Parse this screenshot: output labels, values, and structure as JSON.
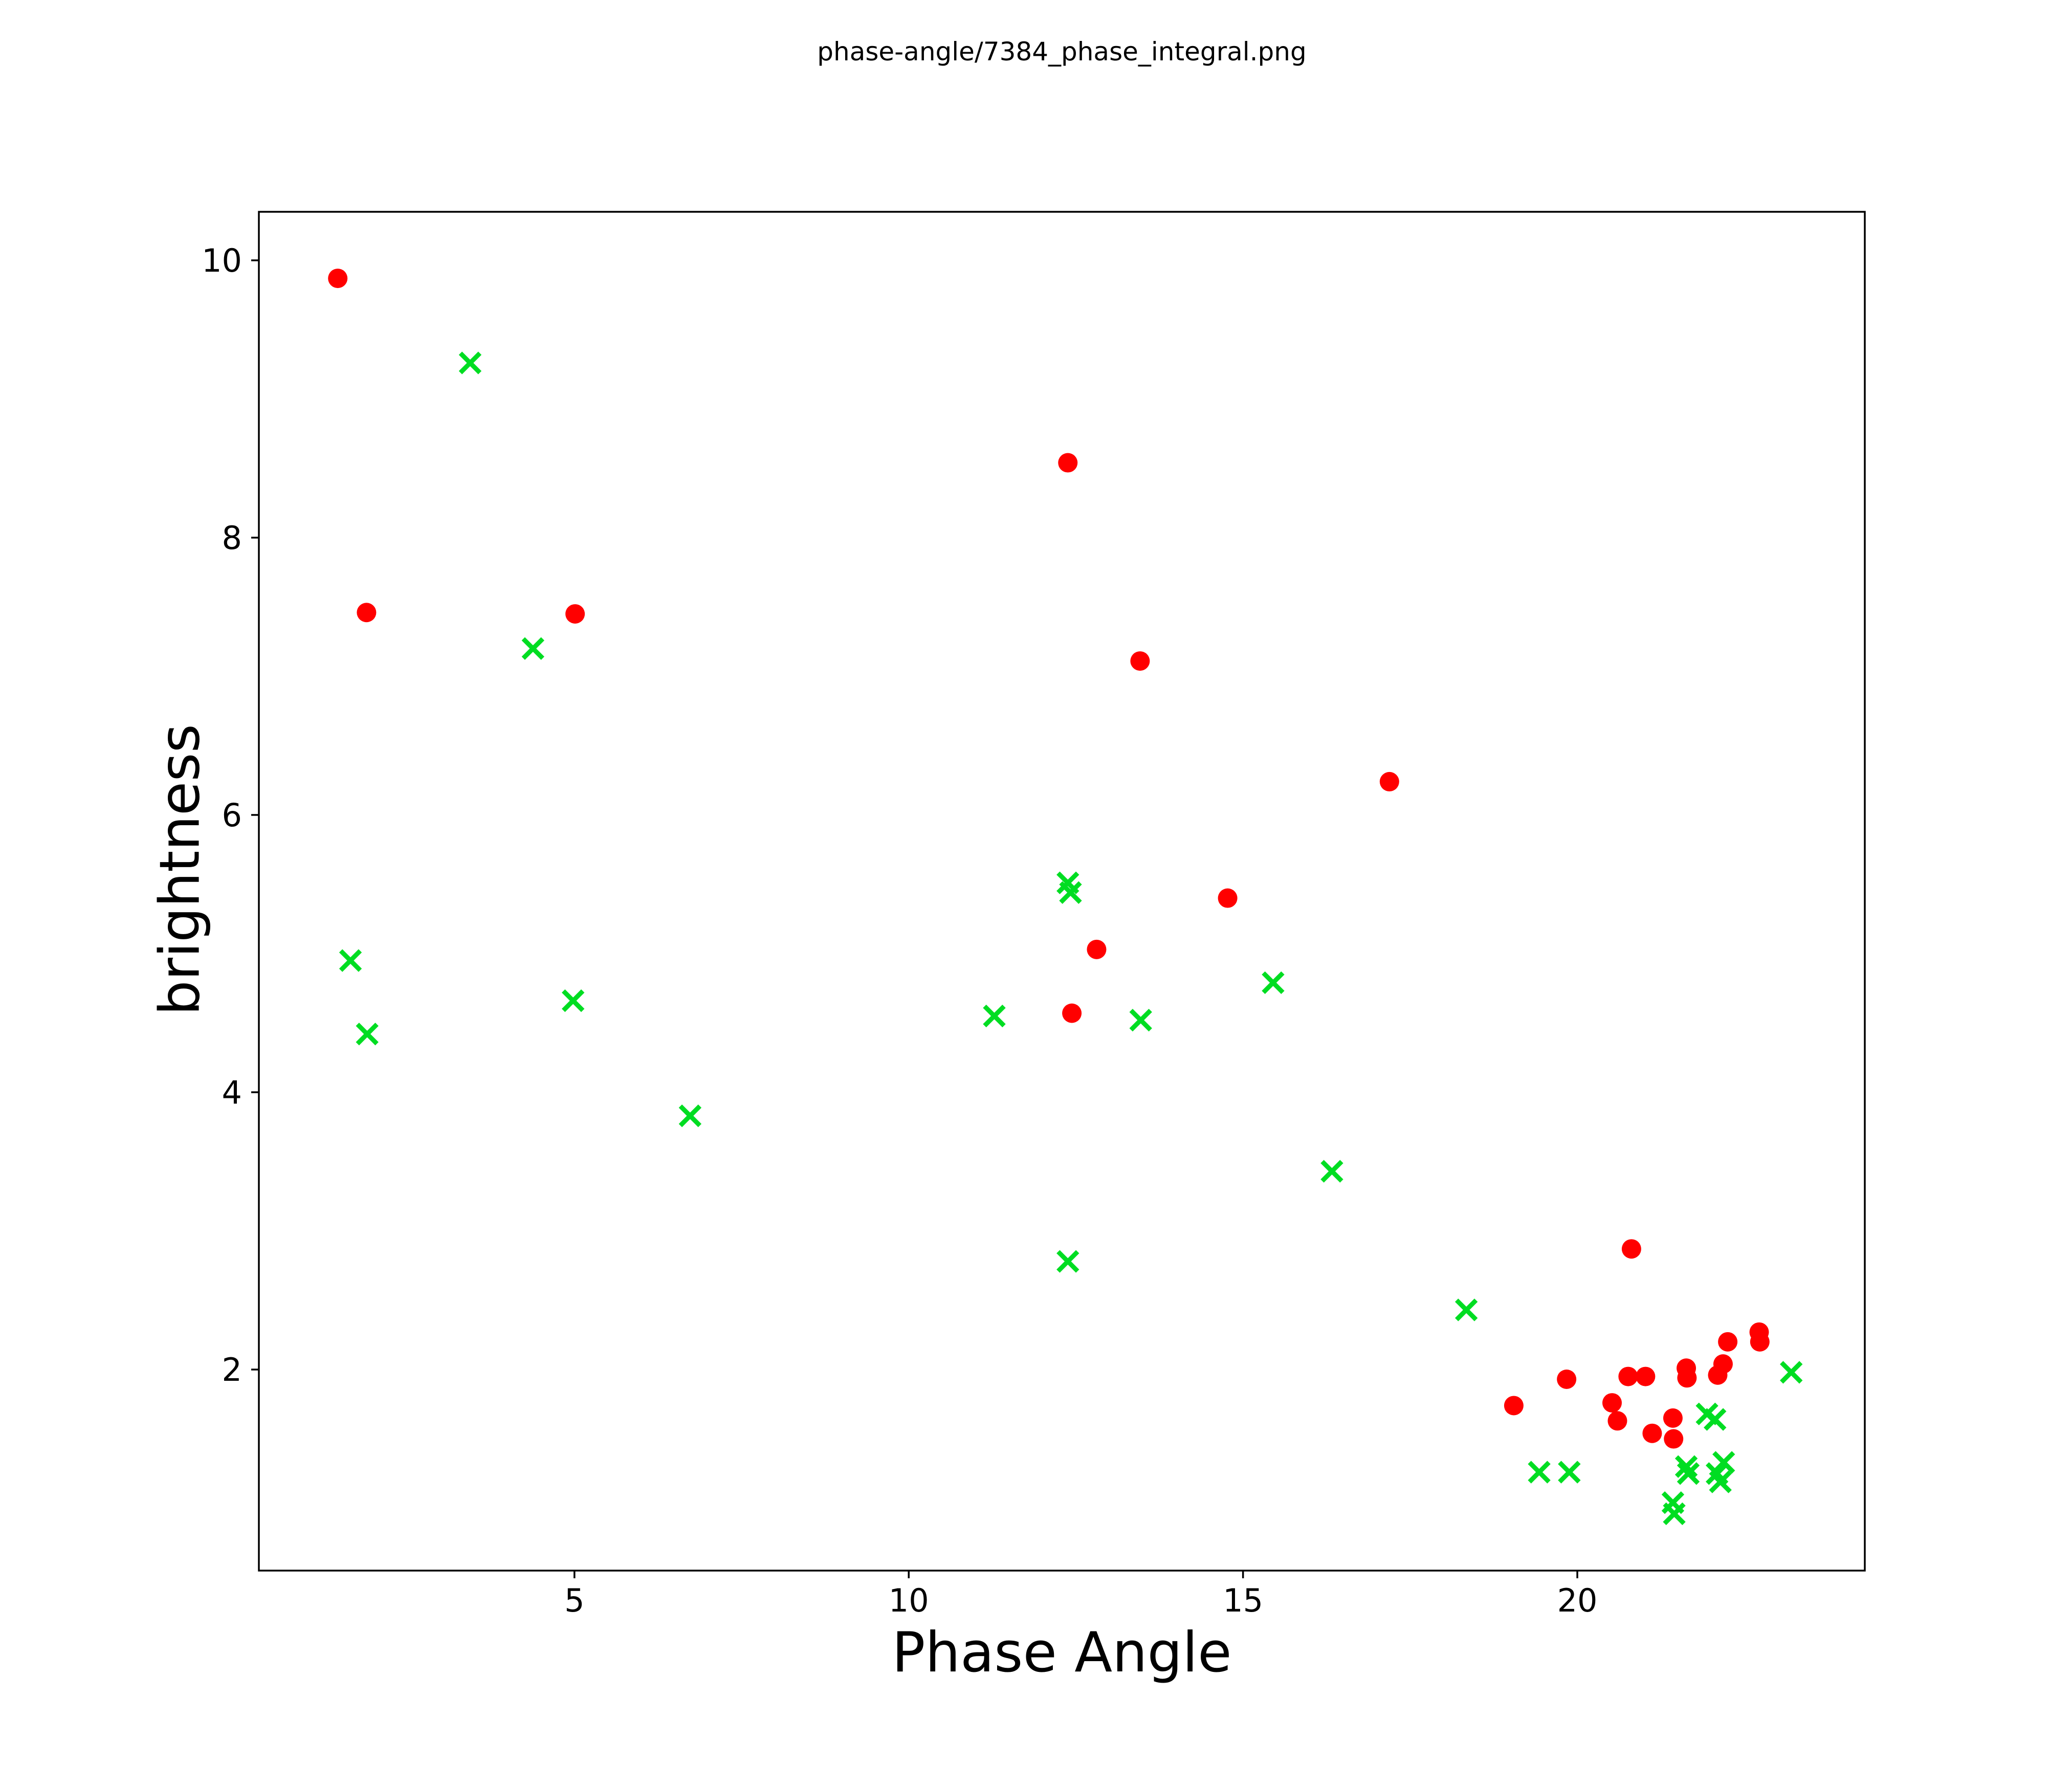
{
  "chart_data": {
    "type": "scatter",
    "title": "phase-angle/7384_phase_integral.png",
    "xlabel": "Phase Angle",
    "ylabel": "brightness",
    "xlim": [
      0.28,
      24.3
    ],
    "ylim": [
      0.55,
      10.35
    ],
    "x_ticks": [
      5,
      10,
      15,
      20
    ],
    "y_ticks": [
      2,
      4,
      6,
      8,
      10
    ],
    "grid": false,
    "legend": false,
    "colors": {
      "series_red": "#ff0000",
      "series_green": "#00dd22",
      "axes": "#000000",
      "background": "#ffffff"
    },
    "series": [
      {
        "name": "red-dots",
        "marker": "circle",
        "color": "#ff0000",
        "points": [
          [
            1.46,
            9.87
          ],
          [
            1.89,
            7.46
          ],
          [
            5.01,
            7.45
          ],
          [
            12.38,
            8.54
          ],
          [
            13.46,
            7.11
          ],
          [
            17.19,
            6.24
          ],
          [
            14.77,
            5.4
          ],
          [
            12.81,
            5.03
          ],
          [
            12.44,
            4.57
          ],
          [
            20.81,
            2.87
          ],
          [
            19.05,
            1.74
          ],
          [
            19.84,
            1.93
          ],
          [
            20.52,
            1.76
          ],
          [
            20.6,
            1.63
          ],
          [
            20.76,
            1.95
          ],
          [
            21.02,
            1.95
          ],
          [
            21.12,
            1.54
          ],
          [
            21.43,
            1.65
          ],
          [
            21.44,
            1.5
          ],
          [
            21.63,
            2.01
          ],
          [
            21.64,
            1.94
          ],
          [
            22.1,
            1.96
          ],
          [
            22.18,
            2.04
          ],
          [
            22.25,
            2.2
          ],
          [
            22.72,
            2.27
          ],
          [
            22.73,
            2.2
          ]
        ]
      },
      {
        "name": "green-crosses",
        "marker": "x",
        "color": "#00dd22",
        "points": [
          [
            3.44,
            9.26
          ],
          [
            4.38,
            7.2
          ],
          [
            1.65,
            4.95
          ],
          [
            1.9,
            4.42
          ],
          [
            4.98,
            4.66
          ],
          [
            6.73,
            3.83
          ],
          [
            11.28,
            4.55
          ],
          [
            12.38,
            5.51
          ],
          [
            12.42,
            5.44
          ],
          [
            13.47,
            4.52
          ],
          [
            15.45,
            4.79
          ],
          [
            16.33,
            3.43
          ],
          [
            12.38,
            2.78
          ],
          [
            18.34,
            2.43
          ],
          [
            19.43,
            1.26
          ],
          [
            19.88,
            1.26
          ],
          [
            21.94,
            1.68
          ],
          [
            22.06,
            1.64
          ],
          [
            21.63,
            1.3
          ],
          [
            21.66,
            1.25
          ],
          [
            22.19,
            1.33
          ],
          [
            22.09,
            1.25
          ],
          [
            22.14,
            1.19
          ],
          [
            21.43,
            1.04
          ],
          [
            21.45,
            0.96
          ],
          [
            23.2,
            1.98
          ]
        ]
      }
    ]
  }
}
